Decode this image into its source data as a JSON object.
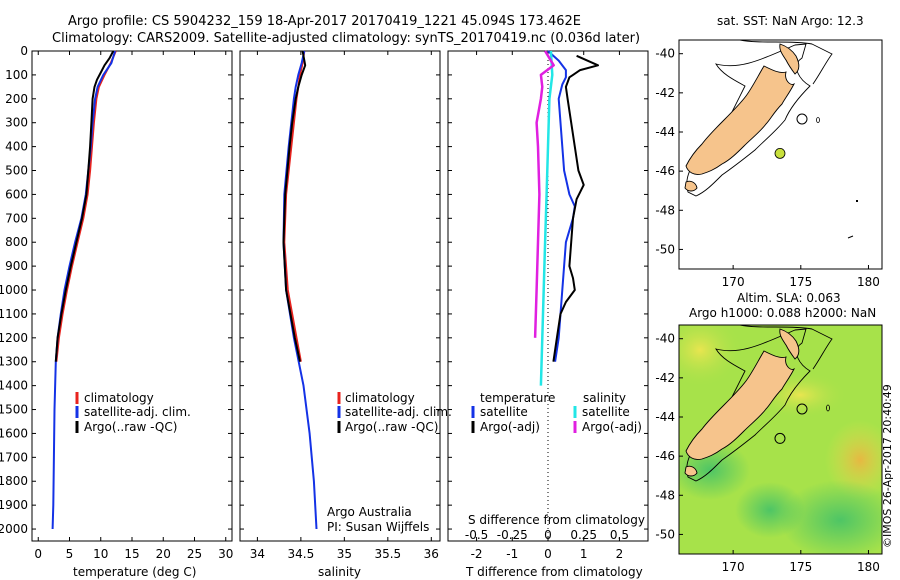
{
  "header": {
    "title_line1": "Argo profile: CS 5904232_159 18-Apr-2017 20170419_1221 45.094S 173.462E",
    "title_line2": "Climatology: CARS2009. Satellite-adjusted climatology: synTS_20170419.nc (0.036d later)"
  },
  "colors": {
    "climatology": "#e8231e",
    "satellite": "#1432e6",
    "argo": "#000000",
    "sal_satellite": "#22e6e6",
    "sal_argo": "#e020e0",
    "land": "#f6c48c",
    "marker": "#c8e03c"
  },
  "chart_data": [
    {
      "type": "line",
      "panel": "temperature",
      "xlabel": "temperature (deg C)",
      "ylabel": "",
      "xlim": [
        -1,
        31
      ],
      "ylim": [
        2050,
        0
      ],
      "xticks": [
        0,
        5,
        10,
        15,
        20,
        25,
        30
      ],
      "yticks": [
        0,
        100,
        200,
        300,
        400,
        500,
        600,
        700,
        800,
        900,
        1000,
        1100,
        1200,
        1300,
        1400,
        1500,
        1600,
        1700,
        1800,
        1900,
        2000
      ],
      "legend": [
        "climatology",
        "satellite-adj. clim.",
        "Argo(..raw -QC)"
      ],
      "series": [
        {
          "name": "climatology",
          "color": "climatology",
          "depth": [
            0,
            50,
            100,
            150,
            200,
            300,
            400,
            500,
            600,
            700,
            800,
            900,
            1000,
            1100,
            1200,
            1300
          ],
          "values": [
            12.4,
            11.6,
            10.6,
            9.7,
            9.3,
            8.9,
            8.6,
            8.3,
            7.9,
            7.2,
            6.3,
            5.4,
            4.6,
            3.9,
            3.3,
            2.9
          ]
        },
        {
          "name": "satellite-adj. clim.",
          "color": "satellite",
          "depth": [
            0,
            50,
            100,
            150,
            200,
            300,
            400,
            500,
            600,
            700,
            800,
            900,
            1000,
            1100,
            1200,
            1300,
            1500,
            1700,
            1900,
            2000
          ],
          "values": [
            12.3,
            11.7,
            10.4,
            9.5,
            9.1,
            8.7,
            8.4,
            8.0,
            7.6,
            6.9,
            5.9,
            5.0,
            4.2,
            3.6,
            3.1,
            2.8,
            2.6,
            2.5,
            2.4,
            2.3
          ]
        },
        {
          "name": "Argo(..raw -QC)",
          "color": "argo",
          "depth": [
            0,
            30,
            60,
            90,
            120,
            150,
            200,
            300,
            400,
            500,
            600,
            700,
            800,
            900,
            1000,
            1100,
            1200,
            1300
          ],
          "values": [
            12.0,
            11.4,
            10.6,
            10.0,
            9.4,
            9.0,
            8.7,
            8.5,
            8.3,
            8.0,
            7.7,
            7.0,
            6.1,
            5.2,
            4.4,
            3.7,
            3.1,
            2.8
          ]
        }
      ]
    },
    {
      "type": "line",
      "panel": "salinity",
      "xlabel": "salinity",
      "ylabel": "",
      "xlim": [
        33.8,
        36.1
      ],
      "ylim": [
        2050,
        0
      ],
      "xticks": [
        34,
        34.5,
        35,
        35.5,
        36
      ],
      "xticklabels": [
        "34",
        "34.5",
        "35",
        "35.5",
        "36"
      ],
      "legend": [
        "climatology",
        "satellite-adj. clim.",
        "Argo(..raw -QC)"
      ],
      "credit_line1": "Argo Australia",
      "credit_line2": "PI: Susan Wijffels",
      "series": [
        {
          "name": "climatology",
          "color": "climatology",
          "depth": [
            0,
            50,
            100,
            150,
            200,
            300,
            400,
            600,
            800,
            1000,
            1200,
            1300
          ],
          "values": [
            34.54,
            34.52,
            34.49,
            34.47,
            34.45,
            34.42,
            34.39,
            34.33,
            34.31,
            34.35,
            34.45,
            34.5
          ]
        },
        {
          "name": "satellite-adj. clim.",
          "color": "satellite",
          "depth": [
            0,
            50,
            100,
            150,
            200,
            300,
            400,
            600,
            800,
            1000,
            1200,
            1400,
            1600,
            1800,
            2000
          ],
          "values": [
            34.54,
            34.51,
            34.47,
            34.44,
            34.42,
            34.39,
            34.36,
            34.31,
            34.3,
            34.33,
            34.42,
            34.53,
            34.6,
            34.65,
            34.68
          ]
        },
        {
          "name": "Argo(..raw -QC)",
          "color": "argo",
          "depth": [
            0,
            60,
            100,
            150,
            200,
            300,
            400,
            600,
            800,
            1000,
            1200,
            1300
          ],
          "values": [
            34.52,
            34.55,
            34.51,
            34.47,
            34.44,
            34.4,
            34.37,
            34.32,
            34.3,
            34.33,
            34.43,
            34.49
          ]
        }
      ]
    },
    {
      "type": "line",
      "panel": "difference",
      "xlabel": "T difference from climatology",
      "xlabel_top": "S difference from climatology",
      "xlim": [
        -2.8,
        2.8
      ],
      "ylim": [
        2050,
        0
      ],
      "xticks": [
        -2,
        -1,
        0,
        1,
        2
      ],
      "xticks_top": [
        -0.5,
        -0.25,
        0,
        0.25,
        0.5
      ],
      "legend": {
        "temperature_header": "temperature",
        "salinity_header": "salinity",
        "t_satellite": "satellite",
        "t_argo": "Argo(-adj)",
        "s_satellite": "satellite",
        "s_argo": "Argo(-adj)"
      },
      "series": [
        {
          "name": "T satellite",
          "color": "satellite",
          "depth": [
            0,
            40,
            80,
            110,
            140,
            200,
            300,
            400,
            500,
            600,
            650,
            700,
            800,
            900,
            1000,
            1100,
            1200,
            1300
          ],
          "values": [
            0.0,
            0.3,
            0.5,
            0.5,
            0.4,
            0.3,
            0.35,
            0.4,
            0.45,
            0.6,
            0.75,
            0.7,
            0.5,
            0.45,
            0.4,
            0.35,
            0.3,
            0.2
          ]
        },
        {
          "name": "T Argo",
          "color": "argo",
          "depth": [
            20,
            60,
            80,
            100,
            110,
            150,
            200,
            250,
            300,
            400,
            500,
            560,
            620,
            700,
            800,
            900,
            950,
            1000,
            1050,
            1100,
            1200,
            1300
          ],
          "values": [
            0.8,
            1.4,
            0.9,
            0.7,
            0.6,
            0.5,
            0.55,
            0.6,
            0.65,
            0.75,
            0.85,
            1.0,
            0.8,
            0.7,
            0.65,
            0.6,
            0.7,
            0.75,
            0.5,
            0.35,
            0.25,
            0.15
          ]
        },
        {
          "name": "S satellite",
          "color": "sal_satellite",
          "depth": [
            0,
            100,
            200,
            400,
            600,
            800,
            1000,
            1200,
            1400
          ],
          "values": [
            0.02,
            0.03,
            0.01,
            0.0,
            -0.01,
            -0.02,
            -0.03,
            -0.04,
            -0.05
          ]
        },
        {
          "name": "S Argo",
          "color": "sal_argo",
          "depth": [
            0,
            60,
            100,
            150,
            200,
            300,
            400,
            600,
            800,
            1000,
            1200
          ],
          "values": [
            -0.02,
            0.04,
            -0.05,
            -0.04,
            -0.05,
            -0.08,
            -0.07,
            -0.06,
            -0.07,
            -0.08,
            -0.09
          ]
        }
      ]
    },
    {
      "type": "map",
      "panel": "sst_map",
      "title": "sat. SST: NaN Argo: 12.3",
      "xlim": [
        166,
        181
      ],
      "ylim": [
        -51,
        -39.3
      ],
      "xticks": [
        170,
        175,
        180
      ],
      "yticks": [
        -40,
        -42,
        -44,
        -46,
        -48,
        -50
      ],
      "float_position": {
        "lon": 173.462,
        "lat": -45.094
      }
    },
    {
      "type": "map",
      "panel": "sla_map",
      "title_line1": "Altim. SLA: 0.063",
      "title_line2": "Argo h1000: 0.088 h2000: NaN",
      "xlim": [
        166,
        181
      ],
      "ylim": [
        -51,
        -39.3
      ],
      "xticks": [
        170,
        175,
        180
      ],
      "yticks": [
        -40,
        -42,
        -44,
        -46,
        -48,
        -50
      ],
      "float_position": {
        "lon": 173.462,
        "lat": -45.094
      },
      "stamp": "©IMOS 26-Apr-2017 20:40:49"
    }
  ]
}
